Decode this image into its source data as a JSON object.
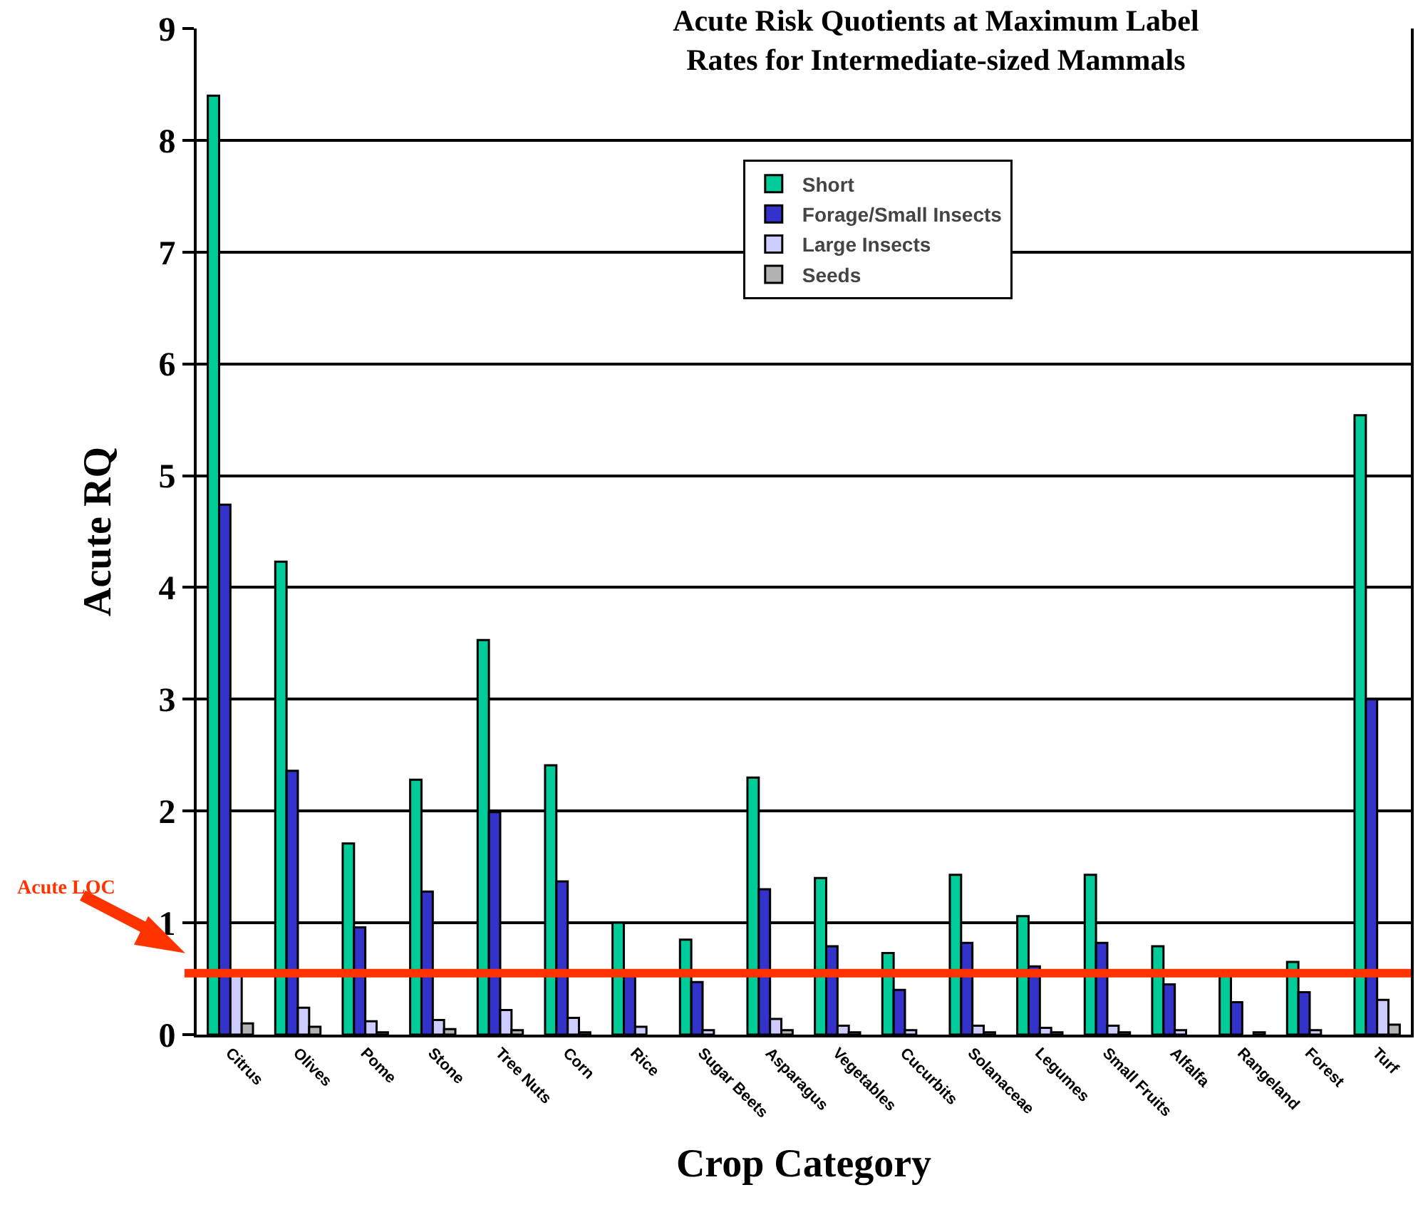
{
  "chart_data": {
    "type": "bar",
    "title": "Acute Risk Quotients at Maximum Label\nRates for Intermediate-sized Mammals",
    "xlabel": "Crop Category",
    "ylabel": "Acute RQ",
    "categories": [
      "Citrus",
      "Olives",
      "Pome",
      "Stone",
      "Tree Nuts",
      "Corn",
      "Rice",
      "Sugar Beets",
      "Asparagus",
      "Vegetables",
      "Cucurbits",
      "Solanaceae",
      "Legumes",
      "Small Fruits",
      "Alfalfa",
      "Rangeland",
      "Forest",
      "Turf"
    ],
    "series": [
      {
        "name": "Short",
        "color": "#00cc99",
        "values": [
          8.4,
          4.23,
          1.71,
          2.28,
          3.53,
          2.41,
          1.0,
          0.85,
          2.3,
          1.4,
          0.73,
          1.43,
          1.06,
          1.43,
          0.79,
          0.55,
          0.65,
          5.54
        ]
      },
      {
        "name": "Forage/Small Insects",
        "color": "#3333cc",
        "values": [
          4.74,
          2.36,
          0.96,
          1.28,
          1.99,
          1.37,
          0.55,
          0.47,
          1.3,
          0.79,
          0.4,
          0.82,
          0.61,
          0.82,
          0.45,
          0.29,
          0.38,
          3.0
        ]
      },
      {
        "name": "Large Insects",
        "color": "#ccccff",
        "values": [
          0.55,
          0.24,
          0.12,
          0.13,
          0.22,
          0.15,
          0.07,
          0.04,
          0.14,
          0.08,
          0.04,
          0.08,
          0.06,
          0.08,
          0.04,
          0.0,
          0.04,
          0.31
        ]
      },
      {
        "name": "Seeds",
        "color": "#b2b2b2",
        "values": [
          0.1,
          0.07,
          0.02,
          0.05,
          0.04,
          0.02,
          0.0,
          0.0,
          0.04,
          0.02,
          0.0,
          0.02,
          0.02,
          0.02,
          0.0,
          0.02,
          0.0,
          0.09
        ]
      }
    ],
    "ylim": [
      0,
      9
    ],
    "yticks": [
      0,
      1,
      2,
      3,
      4,
      5,
      6,
      7,
      8,
      9
    ],
    "grid": "y",
    "legend": "top right",
    "ref_lines": [
      {
        "axis": "y",
        "value": 0.55,
        "label": "Acute LOC",
        "color": "#ff3300"
      }
    ]
  }
}
